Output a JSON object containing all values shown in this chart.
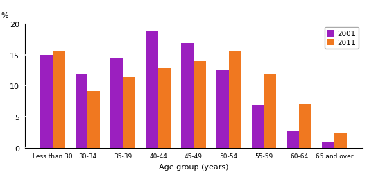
{
  "categories": [
    "Less than 30",
    "30-34",
    "35-39",
    "40-44",
    "45-49",
    "50-54",
    "55-59",
    "60-64",
    "65 and over"
  ],
  "values_2001": [
    15.0,
    11.8,
    14.4,
    18.8,
    16.8,
    12.5,
    6.9,
    2.8,
    0.9
  ],
  "values_2011": [
    15.5,
    9.2,
    11.4,
    12.8,
    14.0,
    15.6,
    11.8,
    7.0,
    2.3
  ],
  "color_2001": "#9B1FBF",
  "color_2011": "#F07820",
  "ylabel": "%",
  "xlabel": "Age group (years)",
  "ylim": [
    0,
    20
  ],
  "yticks": [
    0,
    5,
    10,
    15,
    20
  ],
  "legend_labels": [
    "2001",
    "2011"
  ],
  "grid_color": "#FFFFFF",
  "bg_color": "#FFFFFF",
  "bar_width": 0.35
}
